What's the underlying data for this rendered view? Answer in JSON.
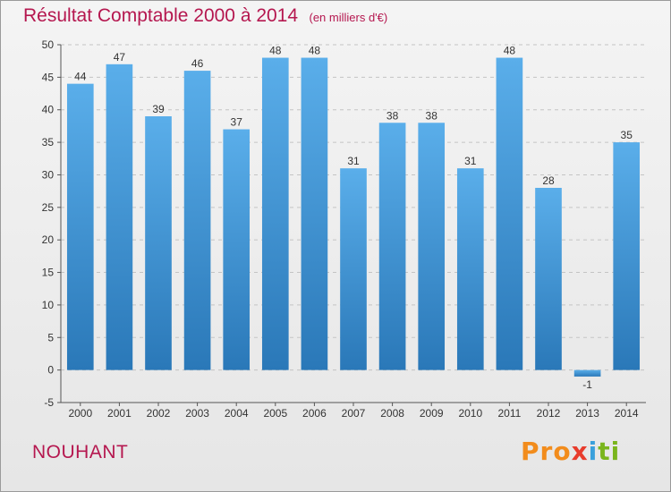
{
  "chart_data": {
    "type": "bar",
    "title": "Résultat Comptable 2000 à 2014",
    "subtitle": "(en milliers d'€)",
    "categories": [
      "2000",
      "2001",
      "2002",
      "2003",
      "2004",
      "2005",
      "2006",
      "2007",
      "2008",
      "2009",
      "2010",
      "2011",
      "2012",
      "2013",
      "2014"
    ],
    "values": [
      44,
      47,
      39,
      46,
      37,
      48,
      48,
      31,
      38,
      38,
      31,
      48,
      28,
      -1,
      35
    ],
    "xlabel": "",
    "ylabel": "",
    "ylim": [
      -5,
      50
    ],
    "yticks": [
      -5,
      0,
      5,
      10,
      15,
      20,
      25,
      30,
      35,
      40,
      45,
      50
    ],
    "grid": true,
    "legend": "none",
    "colors": {
      "bar_top": "#5aaeea",
      "bar_bottom": "#2a78b8",
      "title": "#b5174f"
    }
  },
  "footer": {
    "commune": "NOUHANT"
  },
  "logo": {
    "p1": "Pro",
    "p2": "x",
    "p3": "i",
    "p4": "ti"
  }
}
